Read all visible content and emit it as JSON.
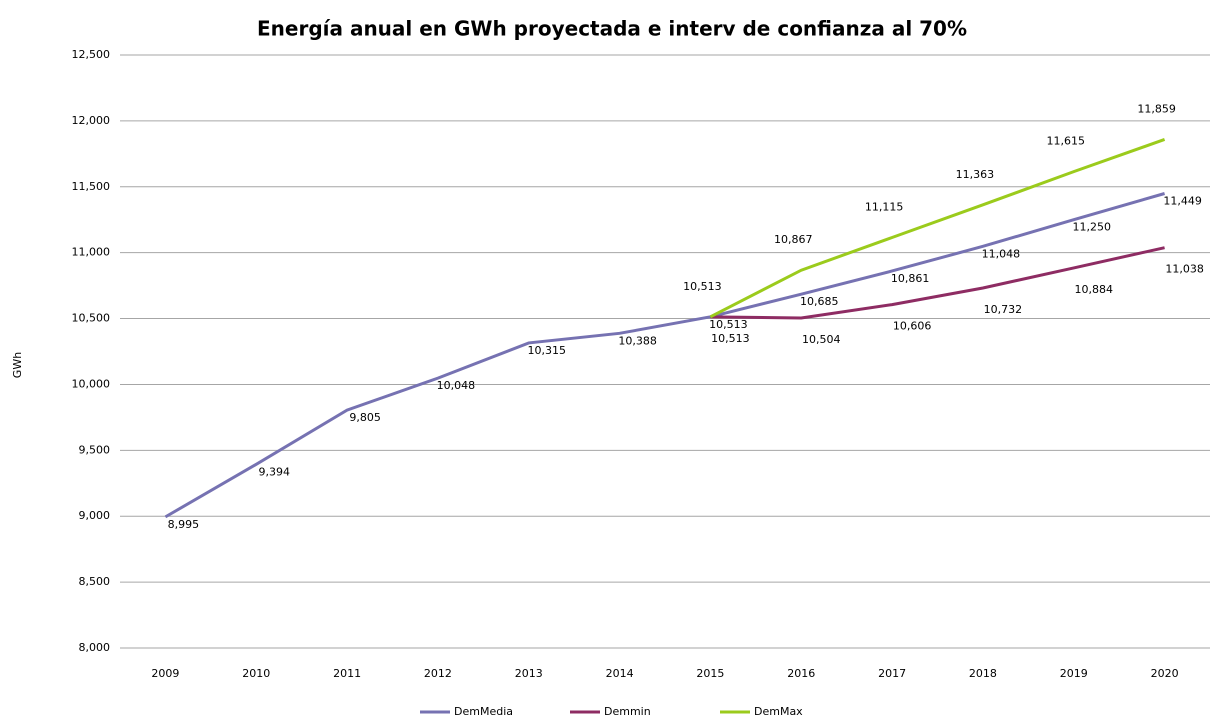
{
  "chart_data": {
    "type": "line",
    "title": "Energía anual en GWh proyectada e interv de confianza al 70%",
    "y_label": "GWh",
    "categories": [
      "2009",
      "2010",
      "2011",
      "2012",
      "2013",
      "2014",
      "2015",
      "2016",
      "2017",
      "2018",
      "2019",
      "2020"
    ],
    "series": [
      {
        "name": "DemMedia",
        "color": "#7672b2",
        "values": [
          8995,
          9394,
          9805,
          10048,
          10315,
          10388,
          10513,
          10685,
          10861,
          11048,
          11250,
          11449
        ],
        "value_labels": [
          "8,995",
          "9,394",
          "9,805",
          "10,048",
          "10,315",
          "10,388",
          "10,513",
          "10,685",
          "10,861",
          "11,048",
          "11,250",
          "11,449"
        ]
      },
      {
        "name": "Demmin",
        "color": "#8e2c63",
        "values": [
          null,
          null,
          null,
          null,
          null,
          null,
          10513,
          10504,
          10606,
          10732,
          10884,
          11038
        ],
        "value_labels": [
          null,
          null,
          null,
          null,
          null,
          null,
          "10,513",
          "10,504",
          "10,606",
          "10,732",
          "10,884",
          "11,038"
        ]
      },
      {
        "name": "DemMax",
        "color": "#9bcb1c",
        "values": [
          null,
          null,
          null,
          null,
          null,
          null,
          10513,
          10867,
          11115,
          11363,
          11615,
          11859
        ],
        "value_labels": [
          null,
          null,
          null,
          null,
          null,
          null,
          "10,513",
          "10,867",
          "11,115",
          "11,363",
          "11,615",
          "11,859"
        ]
      }
    ],
    "ylim": [
      8000,
      12500
    ],
    "yticks": [
      {
        "value": 8000,
        "label": "8,000"
      },
      {
        "value": 8500,
        "label": "8,500"
      },
      {
        "value": 9000,
        "label": "9,000"
      },
      {
        "value": 9500,
        "label": "9,500"
      },
      {
        "value": 10000,
        "label": "10,000"
      },
      {
        "value": 10500,
        "label": "10,500"
      },
      {
        "value": 11000,
        "label": "11,000"
      },
      {
        "value": 11500,
        "label": "11,500"
      },
      {
        "value": 12000,
        "label": "12,000"
      },
      {
        "value": 12500,
        "label": "12,500"
      }
    ],
    "grid": true,
    "legend": "bottom"
  }
}
